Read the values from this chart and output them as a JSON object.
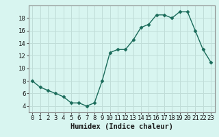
{
  "x": [
    0,
    1,
    2,
    3,
    4,
    5,
    6,
    7,
    8,
    9,
    10,
    11,
    12,
    13,
    14,
    15,
    16,
    17,
    18,
    19,
    20,
    21,
    22,
    23
  ],
  "y": [
    8,
    7,
    6.5,
    6,
    5.5,
    4.5,
    4.5,
    4,
    4.5,
    8,
    12.5,
    13,
    13,
    14.5,
    16.5,
    17,
    18.5,
    18.5,
    18,
    19,
    19,
    16,
    13,
    11
  ],
  "line_color": "#1a6b5a",
  "marker": "D",
  "marker_size": 2.5,
  "bg_color": "#d8f5f0",
  "grid_color": "#c0ddd8",
  "xlabel": "Humidex (Indice chaleur)",
  "ylim": [
    3,
    20
  ],
  "xlim": [
    -0.5,
    23.5
  ],
  "yticks": [
    4,
    6,
    8,
    10,
    12,
    14,
    16,
    18
  ],
  "xticks": [
    0,
    1,
    2,
    3,
    4,
    5,
    6,
    7,
    8,
    9,
    10,
    11,
    12,
    13,
    14,
    15,
    16,
    17,
    18,
    19,
    20,
    21,
    22,
    23
  ],
  "tick_fontsize": 6.5,
  "label_fontsize": 7.5
}
